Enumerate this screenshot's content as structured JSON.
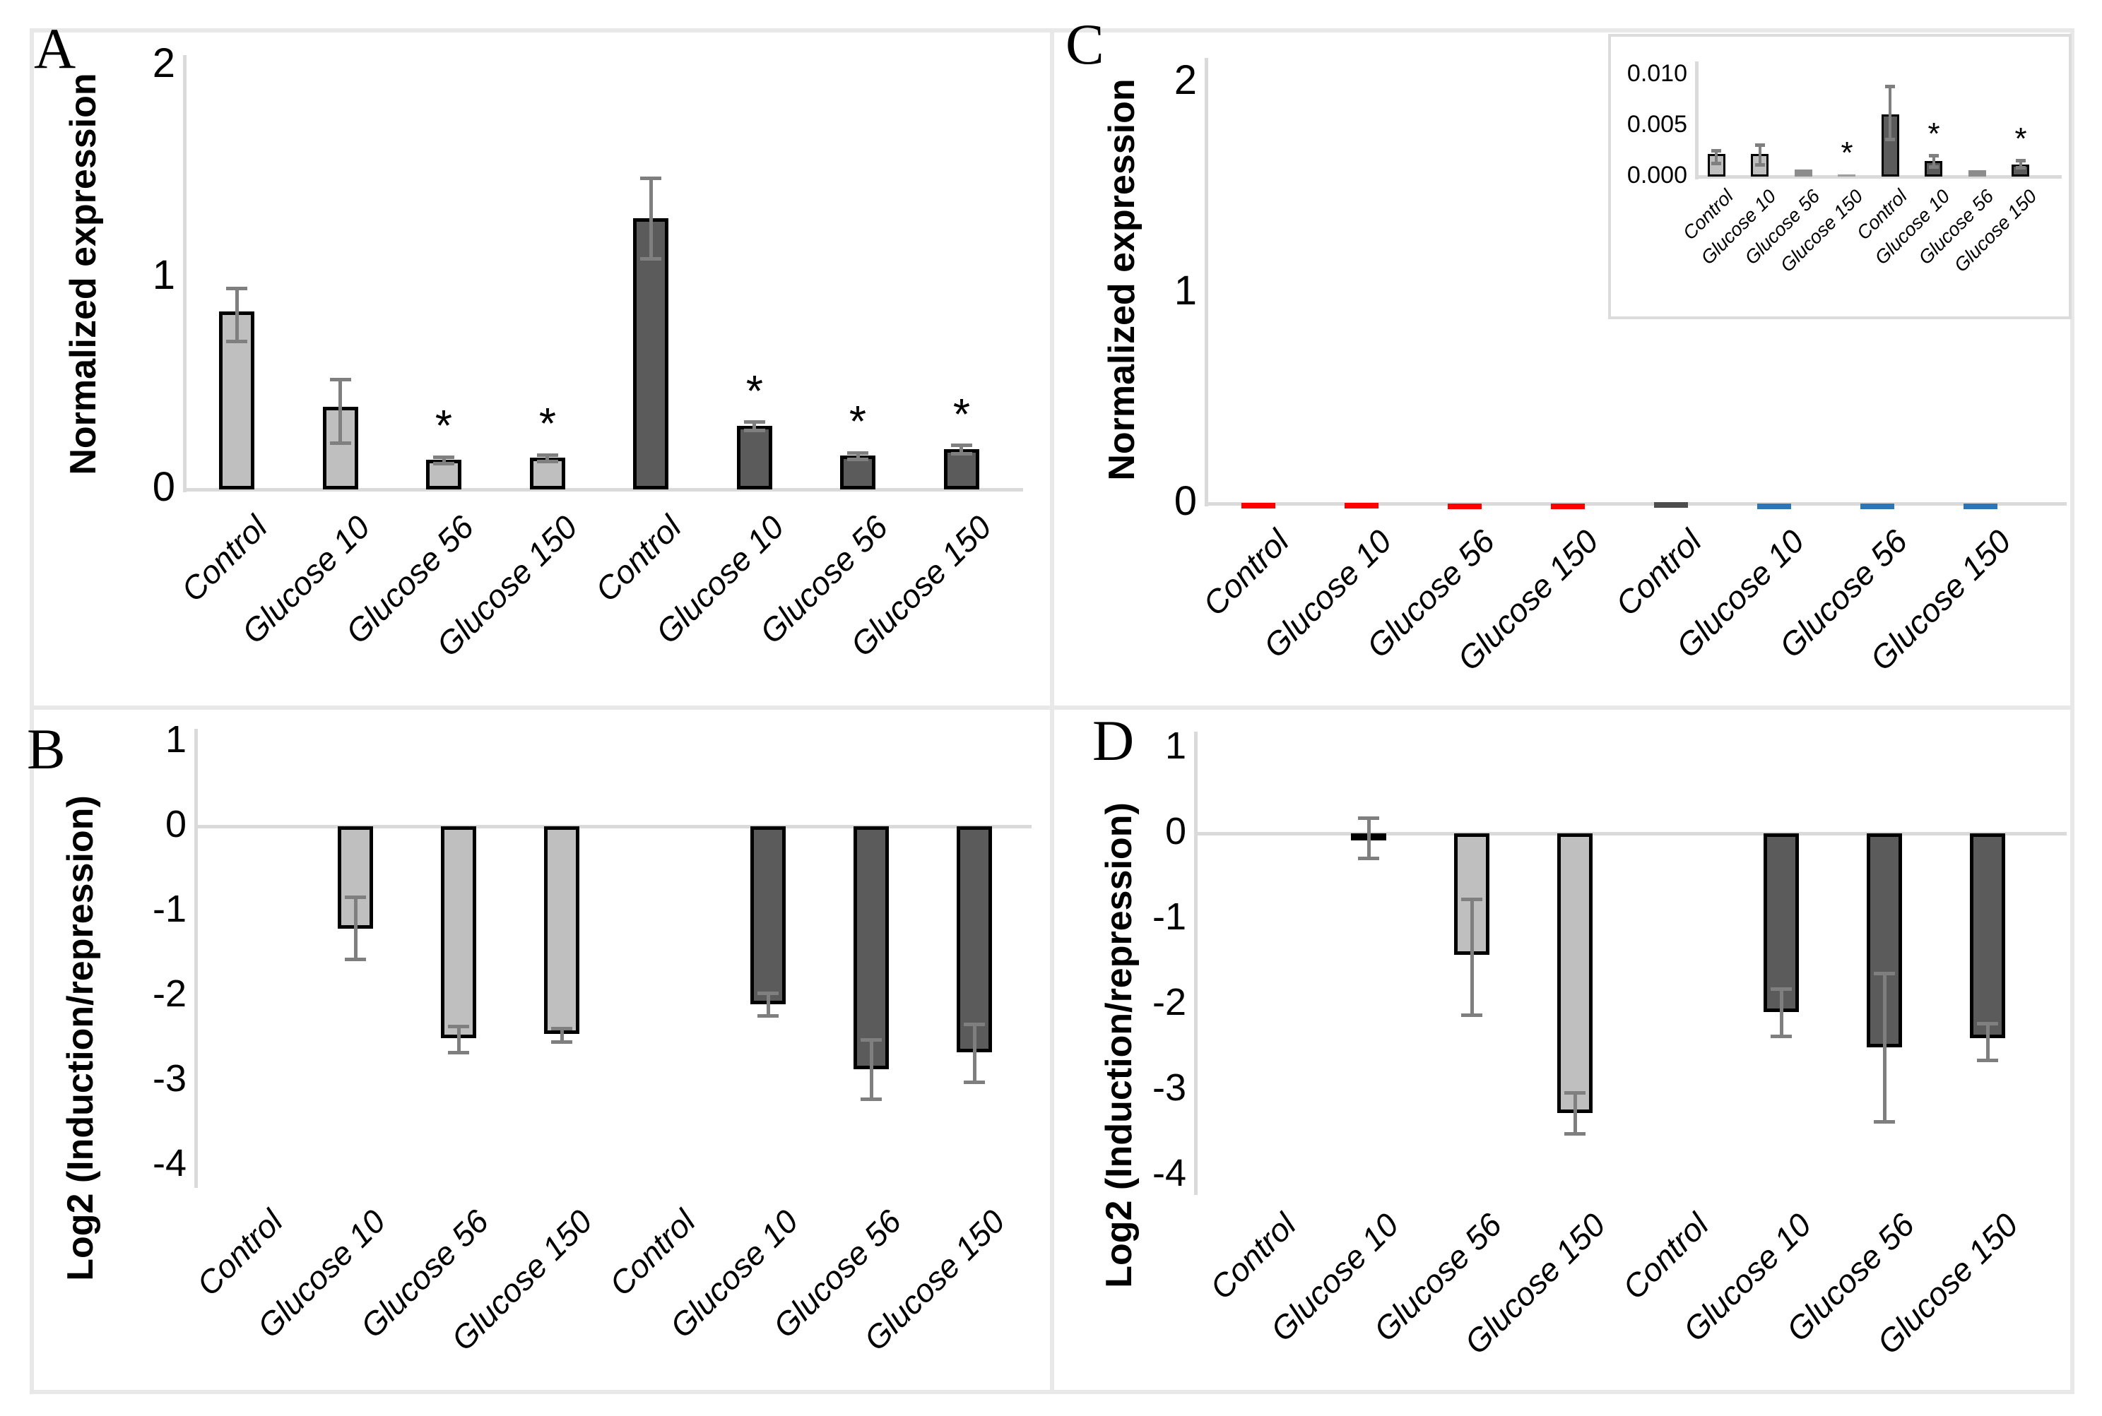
{
  "figure": {
    "panels": [
      {
        "label": "A",
        "ylabel": "Normalized expression"
      },
      {
        "label": "B",
        "ylabel": "Log2 (Induction/repression)"
      },
      {
        "label": "C",
        "ylabel": "Normalized expression"
      },
      {
        "label": "D",
        "ylabel": "Log2 (Induction/repression)"
      }
    ]
  },
  "colors": {
    "light_bar": "#BFBFBF",
    "dark_bar": "#5B5B5B",
    "gray_bar": "#8C8C8C",
    "pale_gray_bar": "#9E9E9E",
    "bar_border": "#000000",
    "error_bar": "#7F7F7F",
    "axis_line": "#DADADA",
    "frame": "#E8E8E8",
    "red_accent": "#FF0000",
    "blue_accent": "#2E75B6",
    "dark_accent": "#4D4D4D"
  },
  "chart_data": [
    {
      "id": "A",
      "panel": "A",
      "type": "bar",
      "title": "",
      "xlabel": "",
      "ylabel": "Normalized expression",
      "ylim": [
        0,
        2
      ],
      "grid": false,
      "legend": "none",
      "y_ticks": [
        "2",
        "1",
        "0"
      ],
      "categories": [
        "Control",
        "Glucose 10",
        "Glucose 56",
        "Glucose 150",
        "Control",
        "Glucose 10",
        "Glucose 56",
        "Glucose 150"
      ],
      "values": [
        0.84,
        0.39,
        0.14,
        0.15,
        1.28,
        0.3,
        0.16,
        0.19
      ],
      "errors": [
        [
          0.7,
          0.95
        ],
        [
          0.22,
          0.52
        ],
        [
          0.125,
          0.155
        ],
        [
          0.135,
          0.165
        ],
        [
          1.09,
          1.47
        ],
        [
          0.28,
          0.32
        ],
        [
          0.145,
          0.175
        ],
        [
          0.17,
          0.21
        ]
      ],
      "stars": [
        false,
        false,
        true,
        true,
        false,
        true,
        true,
        true
      ],
      "bar_fill": [
        "#BFBFBF",
        "#BFBFBF",
        "#BFBFBF",
        "#BFBFBF",
        "#5B5B5B",
        "#5B5B5B",
        "#5B5B5B",
        "#5B5B5B"
      ],
      "bar_border": [
        "#000000",
        "#000000",
        "#000000",
        "#000000",
        "#000000",
        "#000000",
        "#000000",
        "#000000"
      ]
    },
    {
      "id": "B",
      "panel": "B",
      "type": "bar",
      "title": "",
      "xlabel": "",
      "ylabel": "Log2 (Induction/repression)",
      "ylim": [
        -4,
        1
      ],
      "grid": false,
      "legend": "none",
      "y_ticks": [
        "1",
        "0",
        "-1",
        "-2",
        "-3",
        "-4"
      ],
      "categories": [
        "Control",
        "Glucose 10",
        "Glucose 56",
        "Glucose 150",
        "Control",
        "Glucose 10",
        "Glucose 56",
        "Glucose 150"
      ],
      "values": [
        0,
        -1.21,
        -2.5,
        -2.45,
        0,
        -2.1,
        -2.87,
        -2.67
      ],
      "errors": [
        null,
        [
          -1.57,
          -0.83
        ],
        [
          -2.67,
          -2.36
        ],
        [
          -2.54,
          -2.38
        ],
        null,
        [
          -2.23,
          -1.97
        ],
        [
          -3.22,
          -2.52
        ],
        [
          -3.02,
          -2.33
        ]
      ],
      "stars": [
        false,
        false,
        false,
        false,
        false,
        false,
        false,
        false
      ],
      "bar_fill": [
        "#BFBFBF",
        "#BFBFBF",
        "#BFBFBF",
        "#BFBFBF",
        "#5B5B5B",
        "#5B5B5B",
        "#5B5B5B",
        "#5B5B5B"
      ],
      "bar_border": [
        "#000000",
        "#000000",
        "#000000",
        "#000000",
        "#000000",
        "#000000",
        "#000000",
        "#000000"
      ]
    },
    {
      "id": "C",
      "panel": "C",
      "type": "bar",
      "title": "",
      "xlabel": "",
      "ylabel": "Normalized expression",
      "ylim": [
        0,
        2
      ],
      "grid": false,
      "legend": "none",
      "note": "values are near zero; magnified in inset",
      "y_ticks": [
        "2",
        "1",
        "0"
      ],
      "categories": [
        "Control",
        "Glucose 10",
        "Glucose 56",
        "Glucose 150",
        "Control",
        "Glucose 10",
        "Glucose 56",
        "Glucose 150"
      ],
      "values": [
        0.002,
        0.002,
        0.001,
        0.0005,
        0.006,
        0.001,
        0.0005,
        0.001
      ],
      "errors": [
        null,
        null,
        null,
        null,
        null,
        null,
        null,
        null
      ],
      "stars": [
        false,
        false,
        false,
        false,
        false,
        false,
        false,
        false
      ],
      "bar_fill": [
        "#A6A6A6",
        "#A6A6A6",
        "#A6A6A6",
        "#A6A6A6",
        "#8C8C8C",
        "#A6A6A6",
        "#A6A6A6",
        "#A6A6A6"
      ],
      "bar_border": [
        "#FF0000",
        "#FF0000",
        "#FF0000",
        "#FF0000",
        "#4D4D4D",
        "#2E75B6",
        "#2E75B6",
        "#2E75B6"
      ]
    },
    {
      "id": "C_inset",
      "panel": "C",
      "type": "bar",
      "title": "",
      "xlabel": "",
      "ylabel": "",
      "ylim": [
        0,
        0.01
      ],
      "grid": false,
      "legend": "none",
      "y_ticks": [
        "0.010",
        "0.005",
        "0.000"
      ],
      "categories": [
        "Control",
        "Glucose 10",
        "Glucose 56",
        "Glucose 150",
        "Control",
        "Glucose 10",
        "Glucose 56",
        "Glucose 150"
      ],
      "values": [
        0.0022,
        0.0022,
        0.0007,
        0.0002,
        0.0061,
        0.0015,
        0.0006,
        0.0012
      ],
      "errors": [
        [
          0.0013,
          0.0026
        ],
        [
          0.0012,
          0.0031
        ],
        null,
        null,
        [
          0.0037,
          0.0089
        ],
        [
          0.001,
          0.0021
        ],
        null,
        [
          0.0009,
          0.0016
        ]
      ],
      "stars": [
        false,
        false,
        false,
        true,
        false,
        true,
        false,
        true
      ],
      "bar_fill": [
        "#BFBFBF",
        "#BFBFBF",
        "#8C8C8C",
        "#9E9E9E",
        "#5B5B5B",
        "#5B5B5B",
        "#8C8C8C",
        "#5B5B5B"
      ],
      "bar_border": [
        "#000000",
        "#000000",
        null,
        null,
        "#000000",
        "#000000",
        null,
        "#000000"
      ]
    },
    {
      "id": "D",
      "panel": "D",
      "type": "bar",
      "title": "",
      "xlabel": "",
      "ylabel": "Log2 (Induction/repression)",
      "ylim": [
        -4,
        1
      ],
      "grid": false,
      "legend": "none",
      "y_ticks": [
        "1",
        "0",
        "-1",
        "-2",
        "-3",
        "-4"
      ],
      "categories": [
        "Control",
        "Glucose 10",
        "Glucose 56",
        "Glucose 150",
        "Control",
        "Glucose 10",
        "Glucose 56",
        "Glucose 150"
      ],
      "values": [
        0,
        -0.04,
        -1.42,
        -3.27,
        0,
        -2.09,
        -2.5,
        -2.4
      ],
      "errors": [
        null,
        [
          -0.29,
          0.18
        ],
        [
          -2.12,
          -0.77
        ],
        [
          -3.51,
          -3.03
        ],
        null,
        [
          -2.37,
          -1.82
        ],
        [
          -3.37,
          -1.64
        ],
        [
          -2.65,
          -2.22
        ]
      ],
      "stars": [
        false,
        false,
        false,
        false,
        false,
        false,
        false,
        false
      ],
      "bar_fill": [
        "#BFBFBF",
        "#BFBFBF",
        "#BFBFBF",
        "#BFBFBF",
        "#5B5B5B",
        "#5B5B5B",
        "#5B5B5B",
        "#5B5B5B"
      ],
      "bar_border": [
        "#000000",
        "#000000",
        "#000000",
        "#000000",
        "#000000",
        "#000000",
        "#000000",
        "#000000"
      ]
    }
  ]
}
